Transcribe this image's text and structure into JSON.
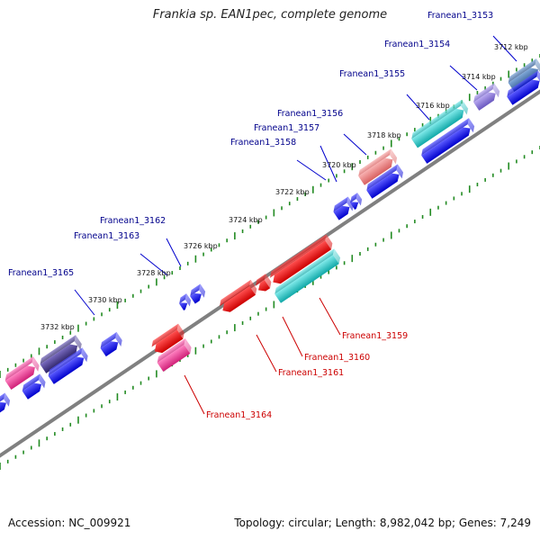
{
  "title": "Frankia sp. EAN1pec, complete genome",
  "accession": "Accession: NC_009921",
  "summary": "Topology: circular; Length: 8,982,042 bp; Genes: 7,249",
  "colors": {
    "backbone": "#808080",
    "tick": "#228b22",
    "label_forward": "#00008b",
    "label_reverse": "#cc0000",
    "blue": "#0000ee",
    "red": "#ee0000",
    "cyan": "#20c8c8",
    "pink": "#ee3c96",
    "purple": "#4a3c8c",
    "salmon": "#e87c7c"
  },
  "kbp_labels": [
    {
      "text": "3712 kbp"
    },
    {
      "text": "3714 kbp"
    },
    {
      "text": "3716 kbp"
    },
    {
      "text": "3718 kbp"
    },
    {
      "text": "3720 kbp"
    },
    {
      "text": "3722 kbp"
    },
    {
      "text": "3724 kbp"
    },
    {
      "text": "3726 kbp"
    },
    {
      "text": "3728 kbp"
    },
    {
      "text": "3730 kbp"
    },
    {
      "text": "3732 kbp"
    }
  ],
  "gene_labels_forward": [
    {
      "text": "Franean1_3153"
    },
    {
      "text": "Franean1_3154"
    },
    {
      "text": "Franean1_3155"
    },
    {
      "text": "Franean1_3156"
    },
    {
      "text": "Franean1_3157"
    },
    {
      "text": "Franean1_3158"
    },
    {
      "text": "Franean1_3162"
    },
    {
      "text": "Franean1_3163"
    },
    {
      "text": "Franean1_3165"
    }
  ],
  "gene_labels_reverse": [
    {
      "text": "Franean1_3159"
    },
    {
      "text": "Franean1_3160"
    },
    {
      "text": "Franean1_3161"
    },
    {
      "text": "Franean1_3164"
    }
  ]
}
